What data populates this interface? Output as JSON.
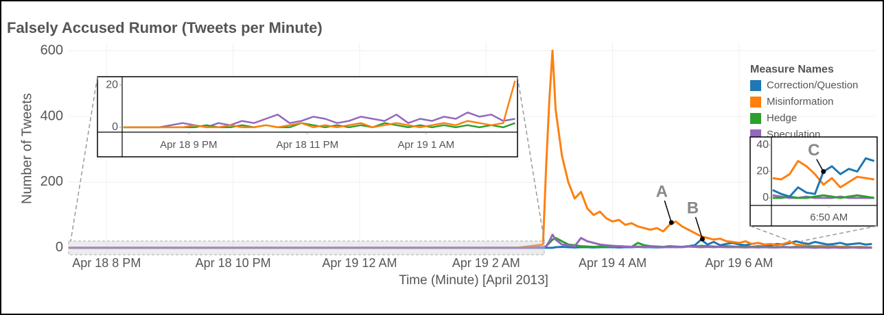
{
  "chart_data": [
    {
      "type": "line",
      "title": "Falsely Accused Rumor (Tweets per Minute)",
      "xlabel": "Time (Minute) [April 2013]",
      "ylabel": "Number of Tweets",
      "xlim": [
        19.4,
        32.15
      ],
      "ylim": [
        -21,
        625
      ],
      "grid": true,
      "xticks": [
        {
          "value": 20,
          "label": "Apr 18 8 PM"
        },
        {
          "value": 22,
          "label": "Apr 18 10 PM"
        },
        {
          "value": 24,
          "label": "Apr 19 12 AM"
        },
        {
          "value": 26,
          "label": "Apr 19 2 AM"
        },
        {
          "value": 28,
          "label": "Apr 19 4 AM"
        },
        {
          "value": 30,
          "label": "Apr 19 6 AM"
        }
      ],
      "yticks": [
        0,
        200,
        400,
        600
      ],
      "legend": {
        "title": "Measure Names",
        "position": "right"
      },
      "x": [
        19.4,
        20.5,
        21.5,
        22.5,
        23.5,
        24.5,
        25.5,
        26.5,
        26.9,
        26.95,
        27.0,
        27.05,
        27.1,
        27.2,
        27.3,
        27.4,
        27.5,
        27.6,
        27.7,
        27.8,
        27.9,
        28.0,
        28.1,
        28.2,
        28.3,
        28.4,
        28.5,
        28.6,
        28.7,
        28.8,
        28.9,
        29.0,
        29.1,
        29.2,
        29.3,
        29.4,
        29.5,
        29.6,
        29.7,
        29.8,
        29.9,
        30.0,
        30.1,
        30.2,
        30.3,
        30.4,
        30.5,
        30.6,
        30.7,
        30.8,
        30.9,
        31.0,
        31.1,
        31.2,
        31.3,
        31.4,
        31.5,
        31.6,
        31.7,
        31.8,
        31.9,
        32.0,
        32.1
      ],
      "series": [
        {
          "name": "Correction/Question",
          "color": "#1f77b4",
          "values": [
            0,
            0,
            0,
            0,
            0,
            0,
            0,
            0,
            0,
            0,
            0,
            0,
            2,
            3,
            2,
            1,
            2,
            2,
            1,
            2,
            2,
            2,
            1,
            2,
            2,
            3,
            2,
            2,
            1,
            2,
            3,
            2,
            3,
            5,
            8,
            25,
            10,
            18,
            8,
            12,
            15,
            10,
            8,
            12,
            15,
            10,
            8,
            12,
            10,
            14,
            20,
            15,
            12,
            18,
            14,
            10,
            12,
            15,
            10,
            12,
            14,
            10,
            12
          ]
        },
        {
          "name": "Misinformation",
          "color": "#ff7f0e",
          "values": [
            0,
            0,
            0,
            0,
            0,
            0,
            0,
            0,
            10,
            250,
            450,
            600,
            420,
            280,
            200,
            150,
            170,
            120,
            100,
            110,
            90,
            80,
            85,
            70,
            75,
            65,
            60,
            55,
            60,
            50,
            70,
            80,
            65,
            55,
            45,
            35,
            30,
            25,
            28,
            20,
            18,
            15,
            20,
            12,
            15,
            10,
            12,
            8,
            12,
            18,
            10,
            8,
            6,
            5,
            6,
            4,
            5,
            3,
            4,
            2,
            3,
            2,
            1
          ]
        },
        {
          "name": "Hedge",
          "color": "#2ca02c",
          "values": [
            0,
            0,
            0,
            0,
            0,
            0,
            0,
            0,
            2,
            5,
            15,
            25,
            30,
            20,
            10,
            8,
            5,
            4,
            3,
            4,
            3,
            3,
            5,
            4,
            3,
            15,
            8,
            5,
            4,
            3,
            5,
            4,
            3,
            5,
            4,
            6,
            5,
            4,
            3,
            5,
            4,
            3,
            4,
            3,
            5,
            4,
            3,
            2,
            3,
            2,
            3,
            2,
            3,
            2,
            2,
            1,
            2,
            1,
            1,
            2,
            1,
            1,
            1
          ]
        },
        {
          "name": "Speculation",
          "color": "#9467bd",
          "values": [
            0,
            0,
            0,
            0,
            0,
            0,
            0,
            0,
            2,
            5,
            20,
            40,
            25,
            10,
            8,
            5,
            30,
            20,
            15,
            10,
            8,
            6,
            5,
            4,
            3,
            4,
            3,
            3,
            2,
            3,
            2,
            3,
            2,
            4,
            3,
            2,
            3,
            2,
            3,
            2,
            2,
            2,
            1,
            2,
            1,
            2,
            1,
            1,
            2,
            1,
            1,
            1,
            1,
            0,
            1,
            0,
            1,
            0,
            0,
            1,
            0,
            0,
            0
          ]
        }
      ],
      "annotations": [
        {
          "text": "A",
          "x": 28.93,
          "y": 77
        },
        {
          "text": "B",
          "x": 29.42,
          "y": 27
        }
      ]
    },
    {
      "type": "line",
      "xlim": [
        19.88,
        26.54
      ],
      "ylim": [
        -2.3,
        23.9
      ],
      "xticks": [
        {
          "value": 21,
          "label": "Apr 18 9 PM"
        },
        {
          "value": 23,
          "label": "Apr 18 11 PM"
        },
        {
          "value": 25,
          "label": "Apr 19 1 AM"
        }
      ],
      "yticks": [
        0,
        20
      ],
      "x": [
        19.9,
        20.1,
        20.3,
        20.5,
        20.7,
        20.9,
        21.1,
        21.3,
        21.5,
        21.7,
        21.9,
        22.1,
        22.3,
        22.5,
        22.7,
        22.9,
        23.1,
        23.3,
        23.5,
        23.7,
        23.9,
        24.1,
        24.3,
        24.5,
        24.7,
        24.9,
        25.1,
        25.3,
        25.5,
        25.7,
        25.9,
        26.1,
        26.3,
        26.5
      ],
      "series": [
        {
          "name": "Speculation",
          "color": "#9467bd",
          "values": [
            0,
            0,
            0,
            0,
            1,
            2,
            1,
            0,
            2,
            1,
            3,
            2,
            4,
            6,
            2,
            3,
            5,
            4,
            2,
            3,
            5,
            4,
            3,
            6,
            2,
            4,
            3,
            5,
            4,
            7,
            5,
            6,
            3,
            4
          ]
        },
        {
          "name": "Hedge",
          "color": "#2ca02c",
          "values": [
            0,
            0,
            0,
            0,
            0,
            0,
            0,
            1,
            0,
            0,
            1,
            0,
            1,
            0,
            0,
            2,
            1,
            0,
            1,
            0,
            1,
            0,
            2,
            1,
            0,
            1,
            0,
            1,
            0,
            1,
            0,
            1,
            0,
            2
          ]
        },
        {
          "name": "Misinformation",
          "color": "#ff7f0e",
          "values": [
            0,
            0,
            0,
            0,
            0,
            0,
            1,
            0,
            0,
            1,
            0,
            0,
            1,
            0,
            1,
            2,
            0,
            1,
            0,
            1,
            2,
            0,
            1,
            2,
            1,
            0,
            1,
            2,
            1,
            3,
            2,
            1,
            2,
            22
          ]
        }
      ]
    },
    {
      "type": "line",
      "xlim": [
        30.697,
        30.947
      ],
      "ylim": [
        -5.7,
        46.2
      ],
      "xticks": [
        {
          "value": 30.833,
          "label": "6:50 AM"
        }
      ],
      "yticks": [
        0,
        20,
        40
      ],
      "x": [
        30.7,
        30.72,
        30.74,
        30.76,
        30.78,
        30.8,
        30.82,
        30.84,
        30.86,
        30.88,
        30.9,
        30.92,
        30.94
      ],
      "series": [
        {
          "name": "Speculation",
          "color": "#9467bd",
          "values": [
            2,
            1,
            0,
            0,
            1,
            0,
            0,
            0,
            1,
            0,
            0,
            0,
            0
          ]
        },
        {
          "name": "Hedge",
          "color": "#2ca02c",
          "values": [
            0,
            0,
            1,
            0,
            0,
            1,
            2,
            1,
            0,
            1,
            2,
            1,
            0
          ]
        },
        {
          "name": "Misinformation",
          "color": "#ff7f0e",
          "values": [
            15,
            14,
            18,
            28,
            24,
            18,
            10,
            15,
            8,
            12,
            16,
            15,
            14
          ]
        },
        {
          "name": "Correction/Question",
          "color": "#1f77b4",
          "values": [
            6,
            3,
            1,
            8,
            4,
            3,
            20,
            24,
            18,
            22,
            20,
            30,
            28
          ]
        }
      ],
      "annotations": [
        {
          "text": "C",
          "x": 30.82,
          "y": 20
        }
      ]
    }
  ]
}
